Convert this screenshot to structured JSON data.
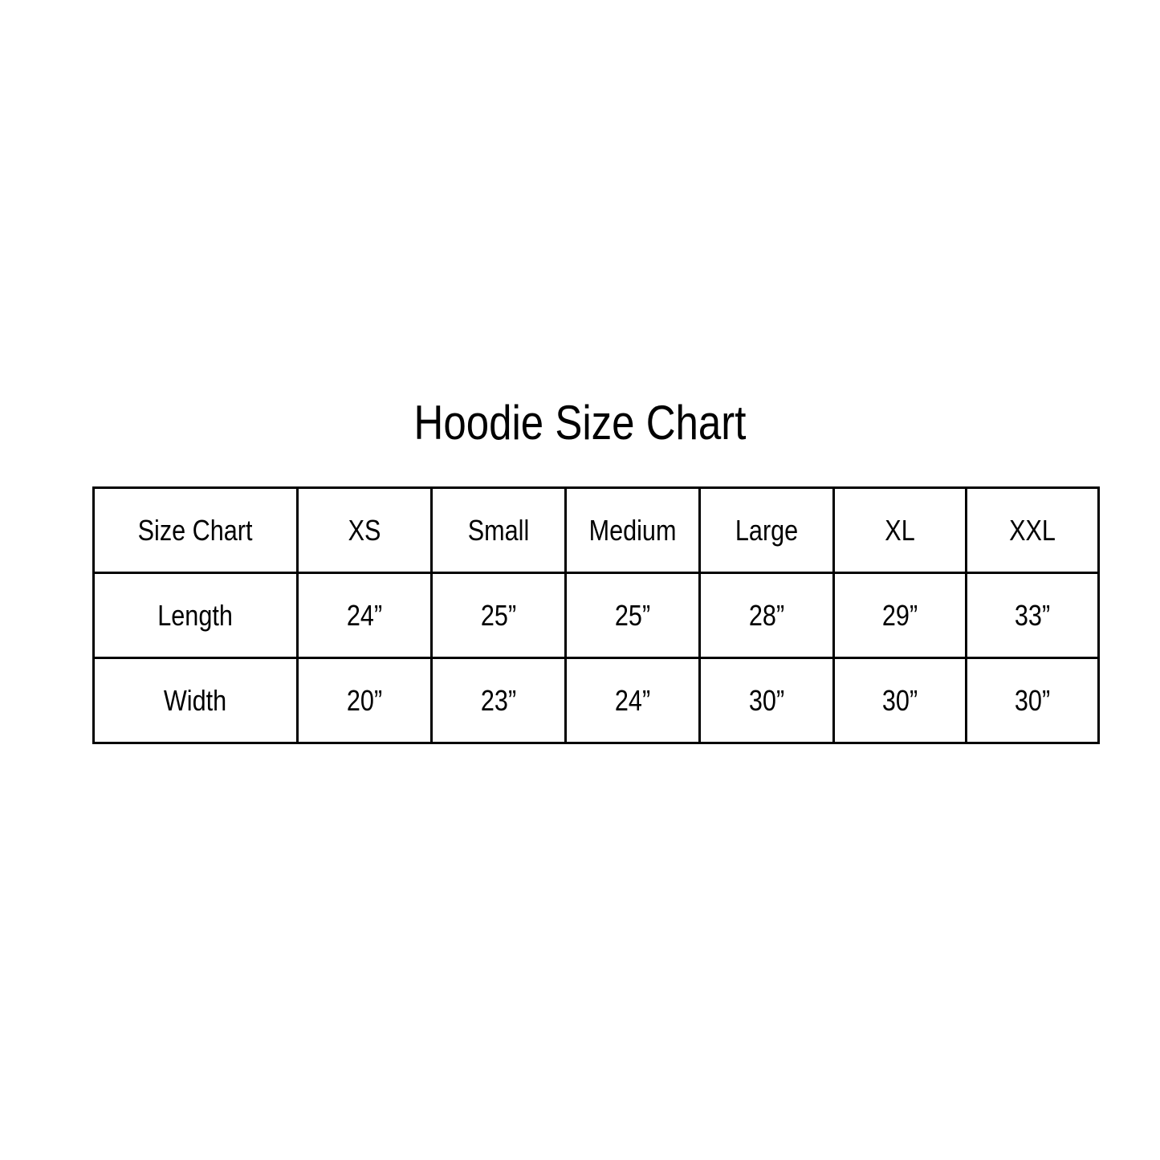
{
  "title": "Hoodie Size Chart",
  "headers": [
    "Size Chart",
    "XS",
    "Small",
    "Medium",
    "Large",
    "XL",
    "XXL"
  ],
  "rows": [
    [
      "Length",
      "24”",
      "25”",
      "25”",
      "28”",
      "29”",
      "33”"
    ],
    [
      "Width",
      "20”",
      "23”",
      "24”",
      "30”",
      "30”",
      "30”"
    ]
  ]
}
